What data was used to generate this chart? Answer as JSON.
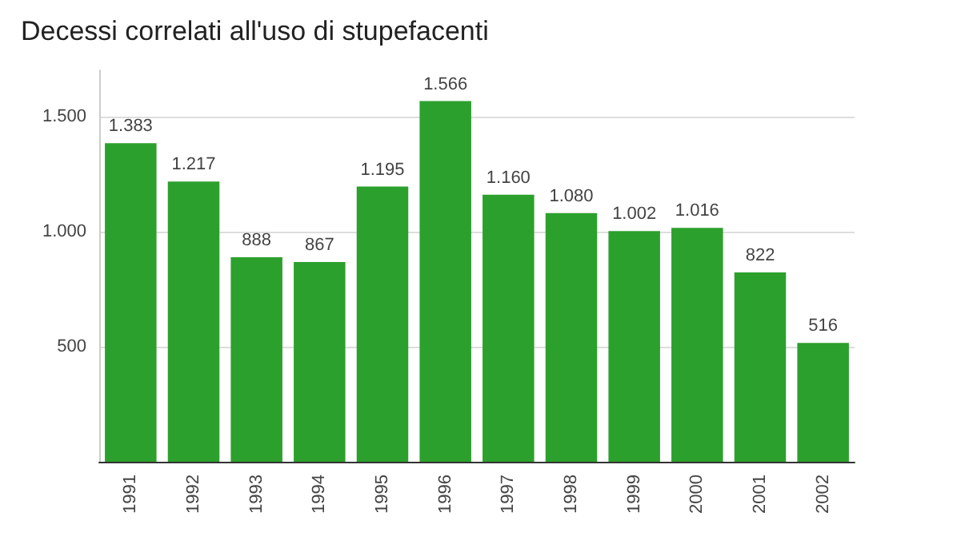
{
  "chart_data": {
    "type": "bar",
    "title": "Decessi correlati all'uso di stupefacenti",
    "categories": [
      "1991",
      "1992",
      "1993",
      "1994",
      "1995",
      "1996",
      "1997",
      "1998",
      "1999",
      "2000",
      "2001",
      "2002"
    ],
    "values": [
      1383,
      1217,
      888,
      867,
      1195,
      1566,
      1160,
      1080,
      1002,
      1016,
      822,
      516
    ],
    "value_labels": [
      "1.383",
      "1.217",
      "888",
      "867",
      "1.195",
      "1.566",
      "1.160",
      "1.080",
      "1.002",
      "1.016",
      "822",
      "516"
    ],
    "color": "#2ca02c",
    "ylim": [
      0,
      1700
    ],
    "yticks": [
      {
        "value": 500,
        "label": "500"
      },
      {
        "value": 1000,
        "label": "1.000"
      },
      {
        "value": 1500,
        "label": "1.500"
      }
    ],
    "grid": "y"
  }
}
